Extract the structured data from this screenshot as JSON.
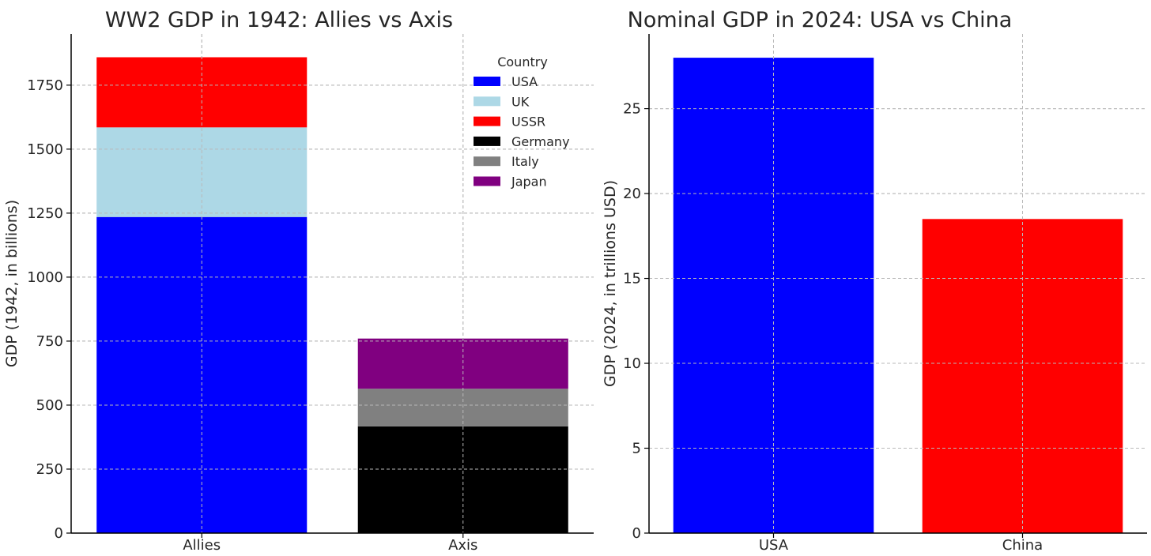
{
  "chart_data": [
    {
      "type": "bar",
      "stacked": true,
      "title": "WW2 GDP in 1942: Allies vs Axis",
      "ylabel": "GDP (1942, in billions)",
      "xlabel": "",
      "categories": [
        "Allies",
        "Axis"
      ],
      "ylim": [
        0,
        1950
      ],
      "yticks": [
        0,
        250,
        500,
        750,
        1000,
        1250,
        1500,
        1750
      ],
      "grid": true,
      "legend": {
        "title": "Country",
        "placement": "top-right"
      },
      "series": [
        {
          "name": "USA",
          "color": "#0000ff",
          "values": [
            1235,
            0
          ]
        },
        {
          "name": "UK",
          "color": "#add8e6",
          "values": [
            350,
            0
          ]
        },
        {
          "name": "USSR",
          "color": "#ff0000",
          "values": [
            274,
            0
          ]
        },
        {
          "name": "Germany",
          "color": "#000000",
          "values": [
            0,
            417
          ]
        },
        {
          "name": "Italy",
          "color": "#808080",
          "values": [
            0,
            147
          ]
        },
        {
          "name": "Japan",
          "color": "#800080",
          "values": [
            0,
            196
          ]
        }
      ]
    },
    {
      "type": "bar",
      "title": "Nominal GDP in 2024: USA vs China",
      "ylabel": "GDP (2024, in trillions USD)",
      "xlabel": "",
      "categories": [
        "USA",
        "China"
      ],
      "values": [
        28.0,
        18.5
      ],
      "colors": [
        "#0000ff",
        "#ff0000"
      ],
      "ylim": [
        0,
        29.4
      ],
      "yticks": [
        0,
        5,
        10,
        15,
        20,
        25
      ],
      "grid": true
    }
  ]
}
